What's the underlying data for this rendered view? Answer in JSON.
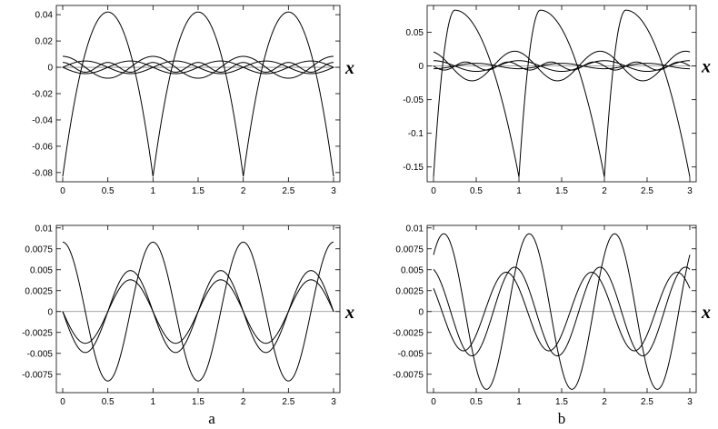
{
  "chart_data": [
    {
      "id": "top-left",
      "type": "line",
      "xlabel": "x",
      "xlim": [
        0,
        3
      ],
      "ylim": [
        -0.087,
        0.047
      ],
      "xticks": [
        0,
        0.5,
        1,
        1.5,
        2,
        2.5,
        3
      ],
      "xtick_labels": [
        "0",
        "0.5",
        "1",
        "1.5",
        "2",
        "2.5",
        "3"
      ],
      "yticks": [
        0.04,
        0.02,
        0,
        -0.02,
        -0.04,
        -0.06,
        -0.08
      ],
      "ytick_labels": [
        "0.04",
        "0.02",
        "0",
        "-0.02",
        "-0.04",
        "-0.06",
        "-0.08"
      ],
      "series": [
        {
          "kind": "parabola",
          "params": {
            "vmin": -0.083,
            "vmax": 0.042
          }
        },
        {
          "kind": "cos",
          "params": {
            "a": 0.0083,
            "k": 2
          }
        },
        {
          "kind": "sin",
          "params": {
            "a": 0.0048,
            "k": 2
          }
        },
        {
          "kind": "sin",
          "params": {
            "a": -0.0048,
            "k": 2
          }
        },
        {
          "kind": "cos",
          "params": {
            "a": 0.0037,
            "k": 4
          }
        }
      ]
    },
    {
      "id": "top-right",
      "type": "line",
      "xlabel": "x",
      "xlim": [
        0,
        3
      ],
      "ylim": [
        -0.172,
        0.09
      ],
      "xticks": [
        0,
        0.5,
        1,
        1.5,
        2,
        2.5,
        3
      ],
      "xtick_labels": [
        "0",
        "0.5",
        "1",
        "1.5",
        "2",
        "2.5",
        "3"
      ],
      "yticks": [
        0.05,
        0,
        -0.05,
        -0.1,
        -0.15
      ],
      "ytick_labels": [
        "0.05",
        "0",
        "-0.05",
        "-0.1",
        "-0.15"
      ],
      "series": [
        {
          "kind": "sharp",
          "params": {
            "vmin": -0.165,
            "vmax": 0.083,
            "peak": 0.25
          }
        },
        {
          "kind": "sin",
          "params": {
            "a": 0.022,
            "k": 2,
            "phase": -0.3
          }
        },
        {
          "kind": "cos",
          "params": {
            "a": 0.008,
            "k": 2
          }
        },
        {
          "kind": "sin",
          "params": {
            "a": -0.006,
            "k": 4
          }
        },
        {
          "kind": "cos",
          "params": {
            "a": -0.004,
            "k": 2
          }
        }
      ]
    },
    {
      "id": "bottom-left",
      "type": "line",
      "xlabel": "x",
      "xlim": [
        0,
        3
      ],
      "ylim": [
        -0.0097,
        0.0103
      ],
      "xticks": [
        0,
        0.5,
        1,
        1.5,
        2,
        2.5,
        3
      ],
      "xtick_labels": [
        "0",
        "0.5",
        "1",
        "1.5",
        "2",
        "2.5",
        "3"
      ],
      "yticks": [
        0.01,
        0.0075,
        0.005,
        0.0025,
        0,
        -0.0025,
        -0.005,
        -0.0075
      ],
      "ytick_labels": [
        "0.01",
        "0.0075",
        "0.005",
        "0.0025",
        "0",
        "-0.0025",
        "-0.005",
        "-0.0075"
      ],
      "series": [
        {
          "kind": "cos",
          "params": {
            "a": 0.0083,
            "k": 2
          }
        },
        {
          "kind": "cos",
          "params": {
            "a": -0.0038,
            "k": 2,
            "phase": 0.25
          }
        },
        {
          "kind": "cos",
          "params": {
            "a": 0.0049,
            "k": 2,
            "phase": -0.25
          }
        }
      ]
    },
    {
      "id": "bottom-right",
      "type": "line",
      "xlabel": "x",
      "xlim": [
        0,
        3
      ],
      "ylim": [
        -0.0097,
        0.0103
      ],
      "xticks": [
        0,
        0.5,
        1,
        1.5,
        2,
        2.5,
        3
      ],
      "xtick_labels": [
        "0",
        "0.5",
        "1",
        "1.5",
        "2",
        "2.5",
        "3"
      ],
      "yticks": [
        0.01,
        0.0075,
        0.005,
        0.0025,
        0,
        -0.0025,
        -0.005,
        -0.0075
      ],
      "ytick_labels": [
        "0.01",
        "0.0075",
        "0.005",
        "0.0025",
        "0",
        "-0.0025",
        "-0.005",
        "-0.0075"
      ],
      "series": [
        {
          "kind": "cos",
          "params": {
            "a": 0.0093,
            "k": 2,
            "phase": -0.88
          }
        },
        {
          "kind": "cos",
          "params": {
            "a": 0.0053,
            "k": 2,
            "phase": -0.05
          }
        },
        {
          "kind": "cos",
          "params": {
            "a": -0.0047,
            "k": 2,
            "phase": 0.35
          }
        }
      ]
    }
  ],
  "captions": {
    "left": "a",
    "right": "b"
  }
}
